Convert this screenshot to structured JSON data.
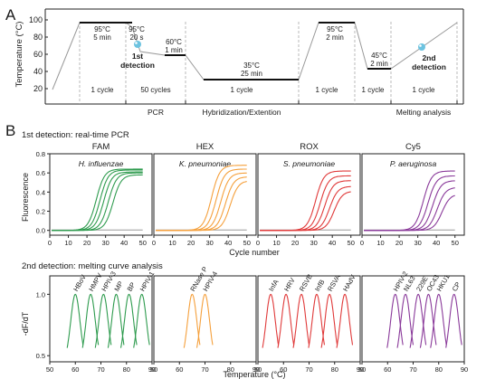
{
  "colors": {
    "green": "#2e9b4e",
    "orange": "#f5a03c",
    "red": "#e03a3a",
    "purple": "#8a3a9a",
    "gray": "#999999",
    "axis": "#222222",
    "cyan": "#6dc3e0"
  },
  "panelA": {
    "letter": "A",
    "ylabel": "Temperature (°C)",
    "yticks": [
      "100",
      "80",
      "60",
      "40",
      "20"
    ],
    "profile": {
      "steps": [
        {
          "l1": "95°C",
          "l2": "5 min"
        },
        {
          "l1": "95°C",
          "l2": "20 s"
        },
        {
          "l1": "60°C",
          "l2": "1 min"
        },
        {
          "l1": "35°C",
          "l2": "25 min"
        },
        {
          "l1": "95°C",
          "l2": "2 min"
        },
        {
          "l1": "45°C",
          "l2": "2 min"
        }
      ],
      "detections": [
        {
          "l1": "1st",
          "l2": "detection"
        },
        {
          "l1": "2nd",
          "l2": "detection"
        }
      ]
    },
    "cycles": [
      "1 cycle",
      "50 cycles",
      "1 cycle",
      "1 cycle",
      "1 cycle",
      "1 cycle"
    ],
    "phases": [
      "PCR",
      "Hybridization/Extention",
      "Melting analysis"
    ]
  },
  "panelB": {
    "letter": "B",
    "title1": "1st detection: real-time PCR",
    "title2": "2nd detection: melting curve analysis"
  },
  "chart_data": [
    {
      "type": "line",
      "title": "1st detection: real-time PCR",
      "ylabel": "Fluorescence",
      "xlabel": "Cycle number",
      "xlim": [
        0,
        55
      ],
      "ylim": [
        -0.05,
        0.8
      ],
      "xticks": [
        "0",
        "10",
        "20",
        "30",
        "40",
        "50"
      ],
      "yticks": [
        "0.0",
        "0.2",
        "0.4",
        "0.6",
        "0.8"
      ],
      "panels": [
        {
          "channel": "FAM",
          "organism": "H. influenzae",
          "color": "#2e9b4e",
          "ct": [
            25,
            27,
            29,
            31.5,
            34
          ],
          "plateau": [
            0.64,
            0.63,
            0.61,
            0.6,
            0.58
          ]
        },
        {
          "channel": "HEX",
          "organism": "K. pneumoniae",
          "color": "#f5a03c",
          "ct": [
            31,
            33.5,
            36,
            38.5,
            41
          ],
          "plateau": [
            0.68,
            0.64,
            0.6,
            0.56,
            0.52
          ]
        },
        {
          "channel": "ROX",
          "organism": "S. pneumoniae",
          "color": "#e03a3a",
          "ct": [
            31,
            33.5,
            36,
            38.5,
            41
          ],
          "plateau": [
            0.62,
            0.57,
            0.52,
            0.46,
            0.41
          ]
        },
        {
          "channel": "Cy5",
          "organism": "P. aeruginosa",
          "color": "#8a3a9a",
          "ct": [
            33,
            35.5,
            38,
            40.5,
            43
          ],
          "plateau": [
            0.62,
            0.57,
            0.52,
            0.45,
            0.38
          ]
        }
      ]
    },
    {
      "type": "line",
      "title": "2nd detection: melting curve analysis",
      "ylabel": "-dF/dT",
      "xlabel": "Temperature (°C)",
      "xlim": [
        50,
        90
      ],
      "ylim": [
        0.45,
        1.15
      ],
      "xticks": [
        "50",
        "60",
        "70",
        "80",
        "90"
      ],
      "yticks": [
        "1.0",
        "0.5"
      ],
      "panels": [
        {
          "color": "#2e9b4e",
          "peaks": [
            {
              "label": "HBoV",
              "tm": 60
            },
            {
              "label": "HMPV",
              "tm": 66
            },
            {
              "label": "HPIV-3",
              "tm": 71
            },
            {
              "label": "MP",
              "tm": 76
            },
            {
              "label": "BP",
              "tm": 81
            },
            {
              "label": "HPIV-1",
              "tm": 86
            }
          ]
        },
        {
          "color": "#f5a03c",
          "peaks": [
            {
              "label": "RNase P",
              "tm": 65
            },
            {
              "label": "HPIV-4",
              "tm": 70
            }
          ]
        },
        {
          "color": "#e03a3a",
          "peaks": [
            {
              "label": "InfA",
              "tm": 55
            },
            {
              "label": "HRV",
              "tm": 61
            },
            {
              "label": "RSVB",
              "tm": 67
            },
            {
              "label": "InfB",
              "tm": 73
            },
            {
              "label": "RSVA",
              "tm": 78
            },
            {
              "label": "HAdV",
              "tm": 84
            }
          ]
        },
        {
          "color": "#8a3a9a",
          "peaks": [
            {
              "label": "HPIV-2",
              "tm": 63
            },
            {
              "label": "NL63",
              "tm": 67
            },
            {
              "label": "229E",
              "tm": 72
            },
            {
              "label": "OC43",
              "tm": 76
            },
            {
              "label": "HKU1",
              "tm": 80
            },
            {
              "label": "CP",
              "tm": 86
            }
          ]
        }
      ]
    }
  ]
}
